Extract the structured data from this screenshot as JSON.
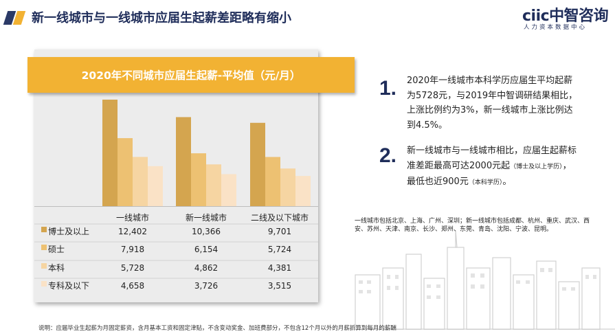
{
  "header": {
    "title": "新一线城市与一线城市应届生起薪差距略有缩小",
    "logo_main": "ciic中智咨询",
    "logo_sub": "人力资本数据中心"
  },
  "colors": {
    "accent_navy": "#2b3a67",
    "accent_gold": "#f2b233",
    "series": [
      "#d4a54f",
      "#edc172",
      "#f6d5a2",
      "#fae2c6"
    ]
  },
  "chart_data": {
    "type": "bar",
    "title": "2020年不同城市应届生起薪-平均值（元/月）",
    "categories": [
      "一线城市",
      "新一线城市",
      "二线及以下城市"
    ],
    "series": [
      {
        "name": "博士及以上",
        "values": [
          12402,
          10366,
          9701
        ]
      },
      {
        "name": "硕士",
        "values": [
          7918,
          6154,
          5724
        ]
      },
      {
        "name": "本科",
        "values": [
          5728,
          4862,
          4381
        ]
      },
      {
        "name": "专科及以下",
        "values": [
          4658,
          3726,
          3515
        ]
      }
    ],
    "value_labels": [
      [
        "12,402",
        "10,366",
        "9,701"
      ],
      [
        "7,918",
        "6,154",
        "5,724"
      ],
      [
        "5,728",
        "4,862",
        "4,381"
      ],
      [
        "4,658",
        "3,726",
        "3,515"
      ]
    ],
    "ylim": [
      0,
      12402
    ],
    "grid": false,
    "legend": "table-left"
  },
  "points": [
    {
      "num": "1.",
      "text": "2020年一线城市本科学历应届生平均起薪为5728元，与2019年中智调研结果相比，上涨比例约为3%，新一线城市上涨比例达到4.5%。"
    },
    {
      "num": "2.",
      "text_main": "新一线城市与一线城市相比，应届生起薪标准差距最高可达2000元起",
      "text_small_1": "（博士及以上学历）",
      "text_mid": "，最低也近900元",
      "text_small_2": "（本科学历）",
      "text_end": "。"
    }
  ],
  "city_note": "一线城市包括北京、上海、广州、深圳；新一线城市包括成都、杭州、重庆、武汉、西安、苏州、天津、南京、长沙、郑州、东莞、青岛、沈阳、宁波、昆明。",
  "footnote": "说明：应届毕业生起薪为月固定薪资，含月基本工资和固定津贴，不含变动奖金、加班费部分，不包含12个月以外的月薪折算到每月的薪酬"
}
